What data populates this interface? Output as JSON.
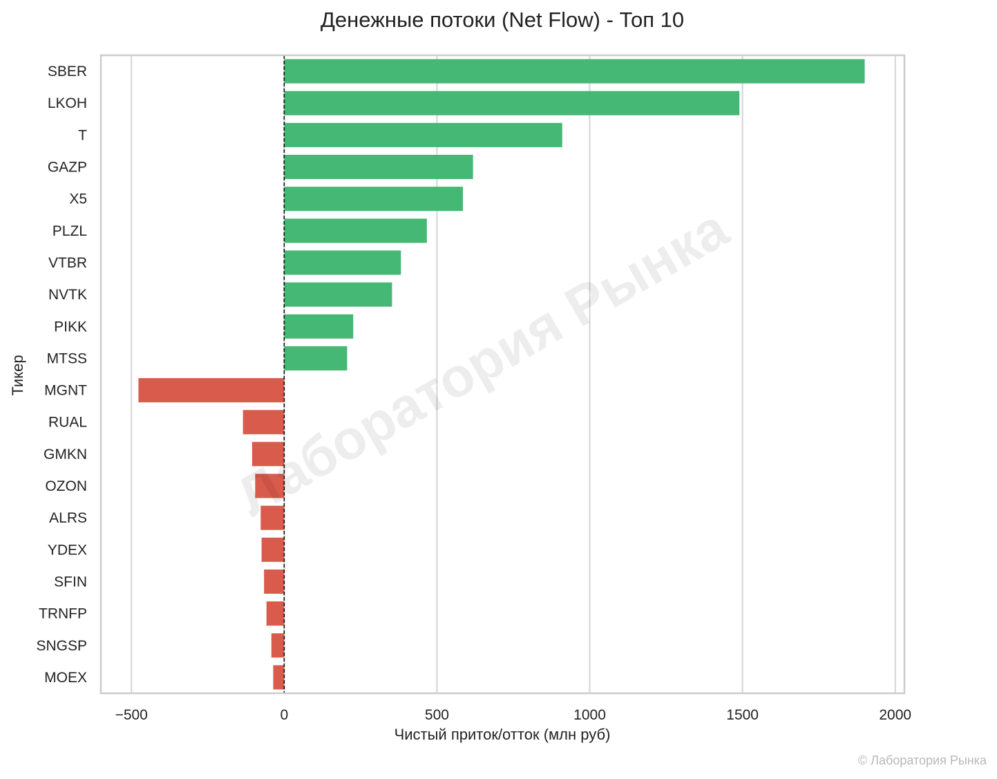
{
  "chart_data": {
    "type": "bar",
    "orientation": "horizontal",
    "title": "Денежные потоки (Net Flow) - Топ 10",
    "xlabel": "Чистый приток/отток (млн руб)",
    "ylabel": "Тикер",
    "xlim": [
      -600,
      2030
    ],
    "xticks": [
      -500,
      0,
      500,
      1000,
      1500,
      2000
    ],
    "xtick_labels": [
      "−500",
      "0",
      "500",
      "1000",
      "1500",
      "2000"
    ],
    "grid": "vertical",
    "zero_line": "dashed",
    "categories": [
      "SBER",
      "LKOH",
      "T",
      "GAZP",
      "X5",
      "PLZL",
      "VTBR",
      "NVTK",
      "PIKK",
      "MTSS",
      "MGNT",
      "RUAL",
      "GMKN",
      "OZON",
      "ALRS",
      "YDEX",
      "SFIN",
      "TRNFP",
      "SNGSP",
      "MOEX"
    ],
    "values": [
      1900,
      1490,
      910,
      618,
      585,
      467,
      382,
      353,
      226,
      206,
      -477,
      -135,
      -105,
      -95,
      -77,
      -74,
      -66,
      -58,
      -42,
      -36
    ],
    "colors": {
      "positive": "#44b874",
      "negative": "#d95b4c"
    },
    "watermark": "Лаборатория Рынка"
  },
  "footer": {
    "copyright": "© Лаборатория Рынка"
  }
}
